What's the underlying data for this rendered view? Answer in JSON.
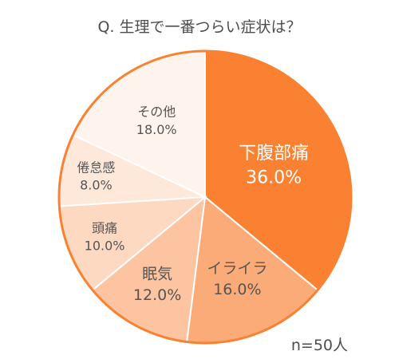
{
  "chart_data": {
    "type": "pie",
    "title": "Q. 生理で一番つらい症状は？",
    "categories": [
      "下腹部痛",
      "イライラ",
      "眠気",
      "頭痛",
      "倦怠感",
      "その他"
    ],
    "values": [
      36.0,
      16.0,
      12.0,
      10.0,
      8.0,
      18.0
    ],
    "value_labels": [
      "36.0%",
      "16.0%",
      "12.0%",
      "10.0%",
      "8.0%",
      "18.0%"
    ],
    "colors": [
      "#fa8131",
      "#fbab77",
      "#fcc4a0",
      "#fdd9c2",
      "#fee8da",
      "#fff4ed"
    ],
    "border_color": "#fa8131",
    "start_angle": "12 o'clock, clockwise",
    "note": "n=50人"
  }
}
